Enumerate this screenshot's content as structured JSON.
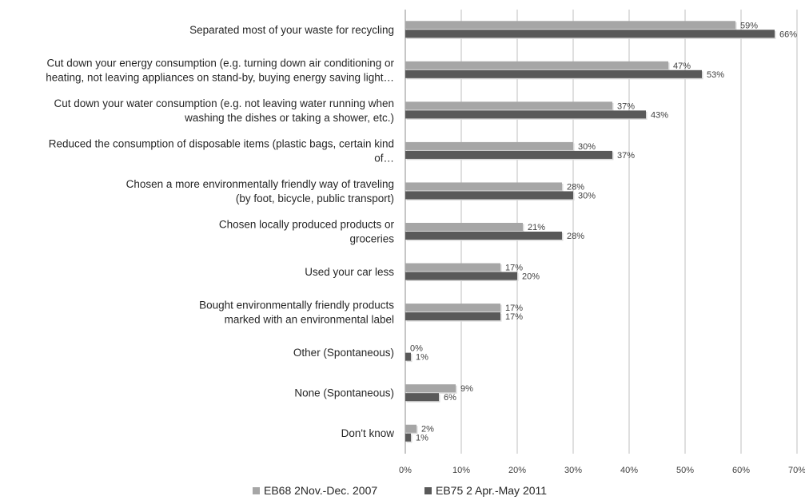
{
  "chart_data": {
    "type": "bar",
    "orientation": "horizontal",
    "categories": [
      [
        "Separated most of your waste  for recycling"
      ],
      [
        "Cut down your energy consumption (e.g. turning down air conditioning or",
        "heating, not leaving appliances on stand-by, buying energy saving light…"
      ],
      [
        "Cut down your water consumption (e.g. not leaving water running when",
        "washing the dishes or taking a shower, etc.)"
      ],
      [
        "Reduced the consumption of disposable items (plastic bags, certain kind",
        "of…"
      ],
      [
        "Chosen a more environmentally friendly  way of traveling",
        "(by foot, bicycle, public transport)"
      ],
      [
        "Chosen locally produced products or",
        "groceries"
      ],
      [
        "Used your car less"
      ],
      [
        "Bought environmentally  friendly products",
        "marked with an environmental label"
      ],
      [
        "Other (Spontaneous)"
      ],
      [
        "None (Spontaneous)"
      ],
      [
        "Don't know"
      ]
    ],
    "series": [
      {
        "name": "EB68 2Nov.-Dec. 2007",
        "color": "#a6a6a6",
        "values": [
          59,
          47,
          37,
          30,
          28,
          21,
          17,
          17,
          0,
          9,
          2
        ],
        "labels": [
          "59%",
          "47%",
          "37%",
          "30%",
          "28%",
          "21%",
          "17%",
          "17%",
          "0%",
          "9%",
          "2%"
        ]
      },
      {
        "name": "EB75 2 Apr.-May 2011",
        "color": "#595959",
        "values": [
          66,
          53,
          43,
          37,
          30,
          28,
          20,
          17,
          1,
          6,
          1
        ],
        "labels": [
          "66%",
          "53%",
          "43%",
          "37%",
          "30%",
          "28%",
          "20%",
          "17%",
          "1%",
          "6%",
          "1%"
        ]
      }
    ],
    "xlim": [
      0,
      70
    ],
    "xticks": [
      "0%",
      "10%",
      "20%",
      "30%",
      "40%",
      "50%",
      "60%",
      "70%"
    ],
    "grid": true,
    "legend_position": "bottom"
  }
}
